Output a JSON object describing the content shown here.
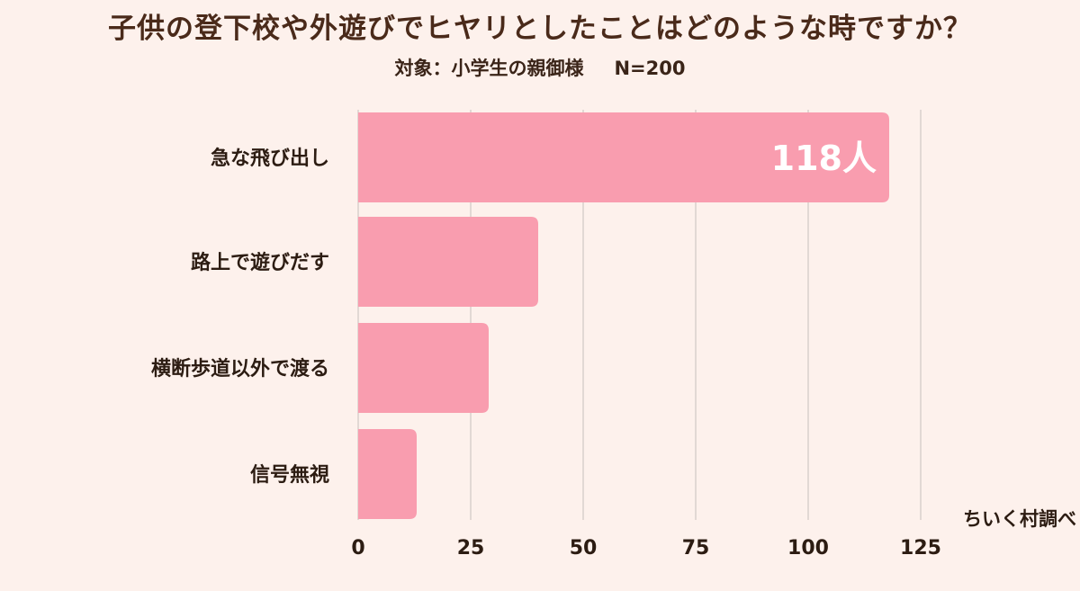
{
  "header": {
    "title": "子供の登下校や外遊びでヒヤリとしたことはどのような時ですか？",
    "target": "対象：小学生の親御様",
    "sample": "N=200"
  },
  "credit": "ちいく村調べ",
  "colors": {
    "background": "#fdf1ec",
    "bar": "#f99daf",
    "grid": "#d9cfcb"
  },
  "chart_data": {
    "type": "bar",
    "orientation": "horizontal",
    "categories": [
      "急な飛び出し",
      "路上で遊びだす",
      "横断歩道以外で渡る",
      "信号無視"
    ],
    "values": [
      118,
      40,
      29,
      13
    ],
    "value_labels": [
      "118人",
      "",
      "",
      ""
    ],
    "xlim": [
      0,
      125
    ],
    "xticks": [
      0,
      25,
      50,
      75,
      100,
      125
    ],
    "grid": "vertical",
    "title": "子供の登下校や外遊びでヒヤリとしたことはどのような時ですか？",
    "subtitle": "対象：小学生の親御様　N=200"
  }
}
